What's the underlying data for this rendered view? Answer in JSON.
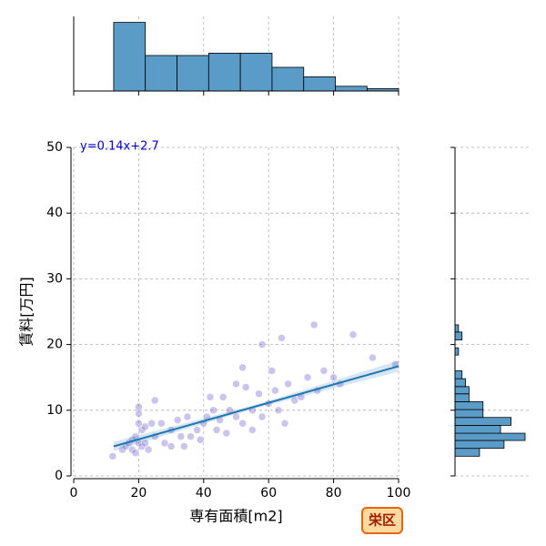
{
  "chart_data": [
    {
      "type": "scatter",
      "x_label": "専有面積[m2]",
      "y_label": "賃料[万円]",
      "annotation": "y=0.14x+2.7",
      "color": "#6a5acd",
      "line_color": "#1f77b4",
      "x": [
        12,
        15,
        16,
        17,
        18,
        18,
        19,
        19,
        20,
        20,
        20,
        20,
        21,
        21,
        22,
        22,
        23,
        24,
        25,
        25,
        27,
        28,
        30,
        30,
        32,
        33,
        34,
        35,
        36,
        38,
        39,
        40,
        41,
        42,
        43,
        44,
        45,
        46,
        47,
        48,
        50,
        50,
        52,
        52,
        53,
        55,
        55,
        57,
        58,
        58,
        60,
        61,
        62,
        63,
        64,
        65,
        66,
        68,
        70,
        72,
        74,
        75,
        77,
        80,
        82,
        86,
        92,
        99
      ],
      "values": [
        3,
        4,
        4.5,
        5,
        4,
        5.5,
        3.5,
        6,
        8,
        9.5,
        10.5,
        5,
        4.5,
        7,
        5,
        7.5,
        4,
        8,
        11.5,
        6,
        8,
        5,
        4.5,
        7,
        8.5,
        6,
        4.5,
        9,
        6,
        7,
        5.5,
        8,
        9,
        12,
        10,
        7,
        8.5,
        12,
        6.5,
        10,
        14,
        9,
        16.5,
        8,
        13.5,
        10,
        7,
        12.5,
        20,
        9,
        11,
        16,
        13,
        10,
        21,
        8,
        14,
        11.5,
        12,
        15,
        23,
        13,
        16,
        15,
        14,
        21.5,
        18,
        17
      ],
      "regression": {
        "x": [
          12.3,
          100
        ],
        "y": [
          4.5,
          16.7
        ]
      },
      "xlim": [
        0,
        100
      ],
      "xticks": [
        0,
        20,
        40,
        60,
        80,
        100
      ],
      "ylim": [
        0,
        50
      ],
      "yticks": [
        0,
        10,
        20,
        30,
        40,
        50
      ],
      "grid": true
    },
    {
      "type": "histogram",
      "orientation": "vertical",
      "color": "#5b9bc8",
      "bins": [
        12.3,
        22.05,
        31.8,
        41.55,
        51.3,
        61.05,
        70.8,
        80.55,
        90.3,
        100
      ],
      "values": [
        29,
        15,
        15,
        16,
        16,
        10,
        6,
        2,
        1
      ],
      "xlim": [
        0,
        100
      ],
      "xticks": [
        0,
        20,
        40,
        60,
        80,
        100
      ],
      "ylim": [
        0,
        30
      ],
      "grid": true
    },
    {
      "type": "histogram",
      "orientation": "horizontal",
      "color": "#5b9bc8",
      "bins": [
        3,
        4.2,
        5.4,
        6.5,
        7.7,
        8.9,
        10.1,
        11.3,
        12.5,
        13.6,
        14.8,
        16,
        17.2,
        18.4,
        19.5,
        20.7,
        21.9,
        23
      ],
      "values": [
        7,
        14,
        20,
        13,
        16,
        8,
        8,
        4,
        4,
        3,
        2,
        0,
        0,
        1,
        0,
        2,
        1
      ],
      "xlim": [
        0,
        20
      ],
      "ylim": [
        0,
        50
      ],
      "yticks": [
        0,
        10,
        20,
        30,
        40,
        50
      ],
      "grid": true
    }
  ],
  "badge": "栄区"
}
